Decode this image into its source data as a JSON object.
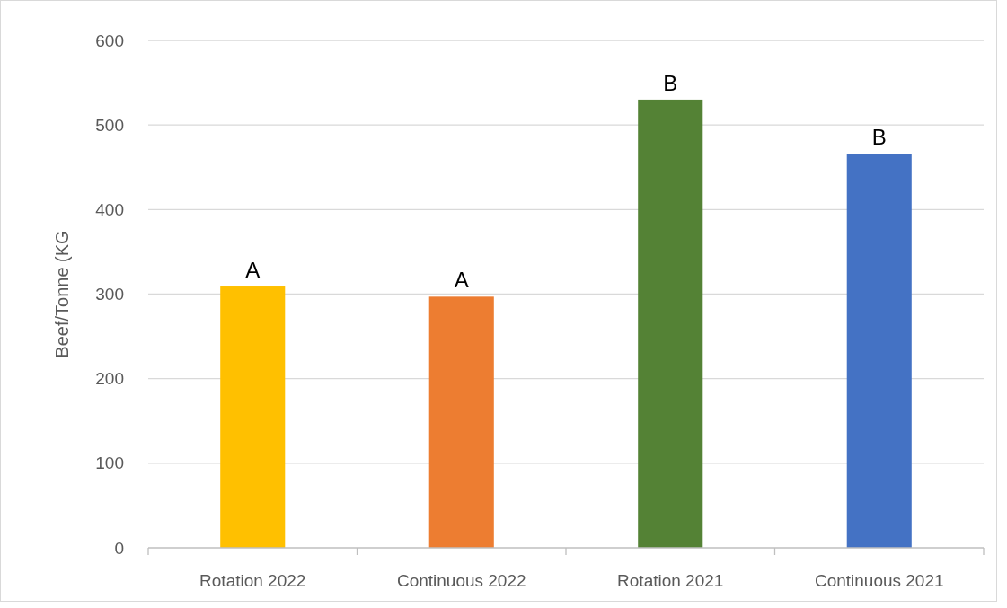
{
  "chart_data": {
    "type": "bar",
    "ylabel": "Beef/Tonne (KG",
    "categories": [
      "Rotation 2022",
      "Continuous 2022",
      "Rotation 2021",
      "Continuous 2021"
    ],
    "values": [
      309,
      297,
      530,
      466
    ],
    "colors": [
      "#ffc000",
      "#ed7d31",
      "#548235",
      "#4472c4"
    ],
    "ylim": [
      0,
      600
    ],
    "yticks": [
      0,
      100,
      200,
      300,
      400,
      500,
      600
    ],
    "grid": "y",
    "annotations": [
      {
        "text": "A",
        "x": "Rotation 2022",
        "y": 309
      },
      {
        "text": "A",
        "x": "Continuous 2022",
        "y": 297
      },
      {
        "text": "B",
        "x": "Rotation 2021",
        "y": 530
      },
      {
        "text": "B",
        "x": "Continuous 2021",
        "y": 466
      }
    ]
  }
}
